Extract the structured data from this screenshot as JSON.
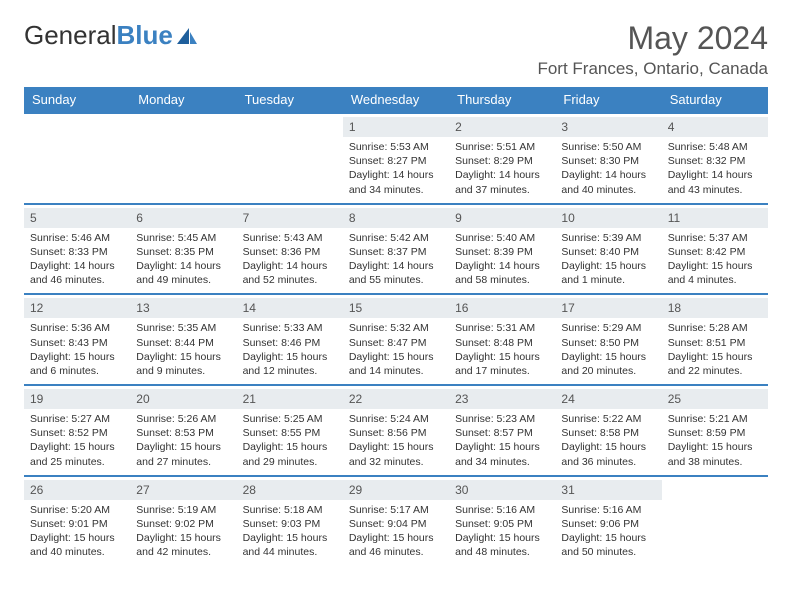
{
  "logo": {
    "part1": "General",
    "part2": "Blue"
  },
  "title": "May 2024",
  "location": "Fort Frances, Ontario, Canada",
  "colors": {
    "header_bg": "#3b81c1",
    "daynum_bg": "#e8ecef",
    "border": "#3b81c1",
    "text": "#333333"
  },
  "weekdays": [
    "Sunday",
    "Monday",
    "Tuesday",
    "Wednesday",
    "Thursday",
    "Friday",
    "Saturday"
  ],
  "weeks": [
    [
      null,
      null,
      null,
      {
        "d": "1",
        "sr": "Sunrise: 5:53 AM",
        "ss": "Sunset: 8:27 PM",
        "dl1": "Daylight: 14 hours",
        "dl2": "and 34 minutes."
      },
      {
        "d": "2",
        "sr": "Sunrise: 5:51 AM",
        "ss": "Sunset: 8:29 PM",
        "dl1": "Daylight: 14 hours",
        "dl2": "and 37 minutes."
      },
      {
        "d": "3",
        "sr": "Sunrise: 5:50 AM",
        "ss": "Sunset: 8:30 PM",
        "dl1": "Daylight: 14 hours",
        "dl2": "and 40 minutes."
      },
      {
        "d": "4",
        "sr": "Sunrise: 5:48 AM",
        "ss": "Sunset: 8:32 PM",
        "dl1": "Daylight: 14 hours",
        "dl2": "and 43 minutes."
      }
    ],
    [
      {
        "d": "5",
        "sr": "Sunrise: 5:46 AM",
        "ss": "Sunset: 8:33 PM",
        "dl1": "Daylight: 14 hours",
        "dl2": "and 46 minutes."
      },
      {
        "d": "6",
        "sr": "Sunrise: 5:45 AM",
        "ss": "Sunset: 8:35 PM",
        "dl1": "Daylight: 14 hours",
        "dl2": "and 49 minutes."
      },
      {
        "d": "7",
        "sr": "Sunrise: 5:43 AM",
        "ss": "Sunset: 8:36 PM",
        "dl1": "Daylight: 14 hours",
        "dl2": "and 52 minutes."
      },
      {
        "d": "8",
        "sr": "Sunrise: 5:42 AM",
        "ss": "Sunset: 8:37 PM",
        "dl1": "Daylight: 14 hours",
        "dl2": "and 55 minutes."
      },
      {
        "d": "9",
        "sr": "Sunrise: 5:40 AM",
        "ss": "Sunset: 8:39 PM",
        "dl1": "Daylight: 14 hours",
        "dl2": "and 58 minutes."
      },
      {
        "d": "10",
        "sr": "Sunrise: 5:39 AM",
        "ss": "Sunset: 8:40 PM",
        "dl1": "Daylight: 15 hours",
        "dl2": "and 1 minute."
      },
      {
        "d": "11",
        "sr": "Sunrise: 5:37 AM",
        "ss": "Sunset: 8:42 PM",
        "dl1": "Daylight: 15 hours",
        "dl2": "and 4 minutes."
      }
    ],
    [
      {
        "d": "12",
        "sr": "Sunrise: 5:36 AM",
        "ss": "Sunset: 8:43 PM",
        "dl1": "Daylight: 15 hours",
        "dl2": "and 6 minutes."
      },
      {
        "d": "13",
        "sr": "Sunrise: 5:35 AM",
        "ss": "Sunset: 8:44 PM",
        "dl1": "Daylight: 15 hours",
        "dl2": "and 9 minutes."
      },
      {
        "d": "14",
        "sr": "Sunrise: 5:33 AM",
        "ss": "Sunset: 8:46 PM",
        "dl1": "Daylight: 15 hours",
        "dl2": "and 12 minutes."
      },
      {
        "d": "15",
        "sr": "Sunrise: 5:32 AM",
        "ss": "Sunset: 8:47 PM",
        "dl1": "Daylight: 15 hours",
        "dl2": "and 14 minutes."
      },
      {
        "d": "16",
        "sr": "Sunrise: 5:31 AM",
        "ss": "Sunset: 8:48 PM",
        "dl1": "Daylight: 15 hours",
        "dl2": "and 17 minutes."
      },
      {
        "d": "17",
        "sr": "Sunrise: 5:29 AM",
        "ss": "Sunset: 8:50 PM",
        "dl1": "Daylight: 15 hours",
        "dl2": "and 20 minutes."
      },
      {
        "d": "18",
        "sr": "Sunrise: 5:28 AM",
        "ss": "Sunset: 8:51 PM",
        "dl1": "Daylight: 15 hours",
        "dl2": "and 22 minutes."
      }
    ],
    [
      {
        "d": "19",
        "sr": "Sunrise: 5:27 AM",
        "ss": "Sunset: 8:52 PM",
        "dl1": "Daylight: 15 hours",
        "dl2": "and 25 minutes."
      },
      {
        "d": "20",
        "sr": "Sunrise: 5:26 AM",
        "ss": "Sunset: 8:53 PM",
        "dl1": "Daylight: 15 hours",
        "dl2": "and 27 minutes."
      },
      {
        "d": "21",
        "sr": "Sunrise: 5:25 AM",
        "ss": "Sunset: 8:55 PM",
        "dl1": "Daylight: 15 hours",
        "dl2": "and 29 minutes."
      },
      {
        "d": "22",
        "sr": "Sunrise: 5:24 AM",
        "ss": "Sunset: 8:56 PM",
        "dl1": "Daylight: 15 hours",
        "dl2": "and 32 minutes."
      },
      {
        "d": "23",
        "sr": "Sunrise: 5:23 AM",
        "ss": "Sunset: 8:57 PM",
        "dl1": "Daylight: 15 hours",
        "dl2": "and 34 minutes."
      },
      {
        "d": "24",
        "sr": "Sunrise: 5:22 AM",
        "ss": "Sunset: 8:58 PM",
        "dl1": "Daylight: 15 hours",
        "dl2": "and 36 minutes."
      },
      {
        "d": "25",
        "sr": "Sunrise: 5:21 AM",
        "ss": "Sunset: 8:59 PM",
        "dl1": "Daylight: 15 hours",
        "dl2": "and 38 minutes."
      }
    ],
    [
      {
        "d": "26",
        "sr": "Sunrise: 5:20 AM",
        "ss": "Sunset: 9:01 PM",
        "dl1": "Daylight: 15 hours",
        "dl2": "and 40 minutes."
      },
      {
        "d": "27",
        "sr": "Sunrise: 5:19 AM",
        "ss": "Sunset: 9:02 PM",
        "dl1": "Daylight: 15 hours",
        "dl2": "and 42 minutes."
      },
      {
        "d": "28",
        "sr": "Sunrise: 5:18 AM",
        "ss": "Sunset: 9:03 PM",
        "dl1": "Daylight: 15 hours",
        "dl2": "and 44 minutes."
      },
      {
        "d": "29",
        "sr": "Sunrise: 5:17 AM",
        "ss": "Sunset: 9:04 PM",
        "dl1": "Daylight: 15 hours",
        "dl2": "and 46 minutes."
      },
      {
        "d": "30",
        "sr": "Sunrise: 5:16 AM",
        "ss": "Sunset: 9:05 PM",
        "dl1": "Daylight: 15 hours",
        "dl2": "and 48 minutes."
      },
      {
        "d": "31",
        "sr": "Sunrise: 5:16 AM",
        "ss": "Sunset: 9:06 PM",
        "dl1": "Daylight: 15 hours",
        "dl2": "and 50 minutes."
      },
      null
    ]
  ]
}
